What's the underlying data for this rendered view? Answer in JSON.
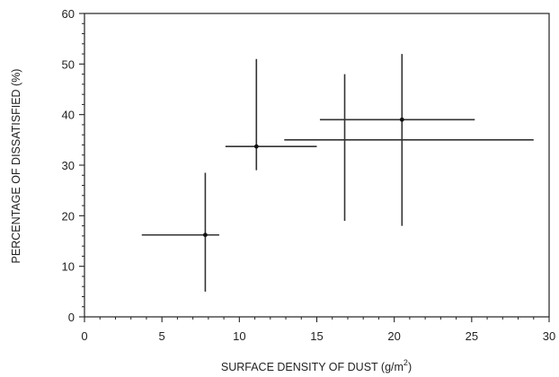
{
  "chart_data": {
    "type": "scatter",
    "title": "",
    "xlabel": "SURFACE DENSITY OF DUST (g/m",
    "xlabel_superscript": "2",
    "xlabel_close": ")",
    "ylabel": "PERCENTAGE OF DISSATISFIED (%)",
    "xlim": [
      0,
      30
    ],
    "ylim": [
      0,
      60
    ],
    "x_ticks": [
      "0",
      "5",
      "10",
      "15",
      "20",
      "25",
      "30"
    ],
    "y_ticks": [
      "0",
      "10",
      "20",
      "30",
      "40",
      "50",
      "60"
    ],
    "grid": false,
    "legend": "none",
    "points": [
      {
        "x": 7.8,
        "y": 16.2,
        "x_low": 3.7,
        "x_high": 8.7,
        "y_low": 5,
        "y_high": 28.5,
        "marker": true
      },
      {
        "x": 11.1,
        "y": 33.7,
        "x_low": 9.1,
        "x_high": 15.0,
        "y_low": 29,
        "y_high": 51,
        "marker": true
      },
      {
        "x": 16.8,
        "y": 35,
        "x_low": 12.9,
        "x_high": 29.0,
        "y_low": 19,
        "y_high": 48,
        "marker": false
      },
      {
        "x": 20.5,
        "y": 39,
        "x_low": 15.2,
        "x_high": 25.2,
        "y_low": 18,
        "y_high": 52,
        "marker": true
      }
    ],
    "colors": {
      "axis": "#222222",
      "marks": "#333333"
    }
  }
}
